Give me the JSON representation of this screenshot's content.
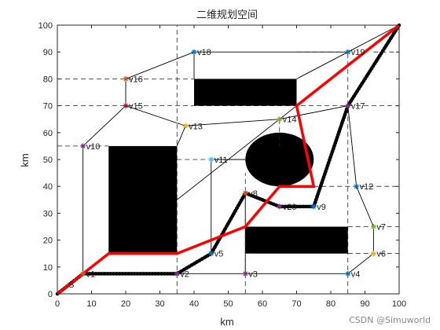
{
  "chart_data": {
    "type": "scatter",
    "title": "二维规划空间",
    "xlabel": "km",
    "ylabel": "km",
    "xlim": [
      0,
      100
    ],
    "ylim": [
      0,
      100
    ],
    "xticks": [
      0,
      10,
      20,
      30,
      40,
      50,
      60,
      70,
      80,
      90,
      100
    ],
    "yticks": [
      0,
      10,
      20,
      30,
      40,
      50,
      60,
      70,
      80,
      90,
      100
    ],
    "grid": false,
    "start_label": "S",
    "obstacles": [
      {
        "shape": "rect",
        "x": [
          15,
          35
        ],
        "y": [
          15,
          55
        ]
      },
      {
        "shape": "rect",
        "x": [
          40,
          70
        ],
        "y": [
          70,
          80
        ]
      },
      {
        "shape": "rect",
        "x": [
          55,
          85
        ],
        "y": [
          15,
          25
        ]
      },
      {
        "shape": "ellipse",
        "center": [
          65,
          50
        ],
        "radii": [
          10,
          10
        ]
      }
    ],
    "vertices": [
      {
        "name": "v1",
        "x": 7.5,
        "y": 7.5,
        "color": "#d95319"
      },
      {
        "name": "v2",
        "x": 35,
        "y": 7.5,
        "color": "#7e2f8e"
      },
      {
        "name": "v3",
        "x": 55,
        "y": 7.5,
        "color": "#7e2f8e"
      },
      {
        "name": "v4",
        "x": 85,
        "y": 7.5,
        "color": "#0072bd"
      },
      {
        "name": "v5",
        "x": 45,
        "y": 15,
        "color": "#0072bd"
      },
      {
        "name": "v6",
        "x": 92.5,
        "y": 15,
        "color": "#edb120"
      },
      {
        "name": "v7",
        "x": 92.5,
        "y": 25,
        "color": "#77ac30"
      },
      {
        "name": "v8",
        "x": 55,
        "y": 37.5,
        "color": "#d95319"
      },
      {
        "name": "v9",
        "x": 75,
        "y": 32.5,
        "color": "#0072bd"
      },
      {
        "name": "v10",
        "x": 7.5,
        "y": 55,
        "color": "#7e2f8e"
      },
      {
        "name": "v11",
        "x": 45,
        "y": 50,
        "color": "#4dbeee"
      },
      {
        "name": "v12",
        "x": 87.5,
        "y": 40,
        "color": "#0072bd"
      },
      {
        "name": "v13",
        "x": 37.5,
        "y": 62.5,
        "color": "#edb120"
      },
      {
        "name": "v14",
        "x": 65,
        "y": 65,
        "color": "#77ac30"
      },
      {
        "name": "v15",
        "x": 20,
        "y": 70,
        "color": "#a2142f"
      },
      {
        "name": "v16",
        "x": 20,
        "y": 80,
        "color": "#d95319"
      },
      {
        "name": "v17",
        "x": 85,
        "y": 70,
        "color": "#7e2f8e"
      },
      {
        "name": "v18",
        "x": 40,
        "y": 90,
        "color": "#0072bd"
      },
      {
        "name": "v19",
        "x": 85,
        "y": 90,
        "color": "#0072bd"
      },
      {
        "name": "v20",
        "x": 65,
        "y": 32.5,
        "color": "#7e2f8e"
      }
    ],
    "series": [
      {
        "name": "",
        "style": "thin-black",
        "segments": [
          [
            [
              0,
              0
            ],
            [
              100,
              100
            ]
          ],
          [
            [
              7.5,
              7.5
            ],
            [
              7.5,
              55
            ]
          ],
          [
            [
              7.5,
              55
            ],
            [
              20,
              70
            ]
          ],
          [
            [
              20,
              70
            ],
            [
              20,
              80
            ]
          ],
          [
            [
              20,
              80
            ],
            [
              40,
              90
            ]
          ],
          [
            [
              40,
              90
            ],
            [
              85,
              90
            ]
          ],
          [
            [
              85,
              90
            ],
            [
              100,
              100
            ]
          ],
          [
            [
              20,
              70
            ],
            [
              37.5,
              62.5
            ]
          ],
          [
            [
              37.5,
              62.5
            ],
            [
              65,
              65
            ]
          ],
          [
            [
              65,
              65
            ],
            [
              85,
              70
            ]
          ],
          [
            [
              85,
              70
            ],
            [
              100,
              100
            ]
          ],
          [
            [
              37.5,
              62.5
            ],
            [
              35,
              55
            ]
          ],
          [
            [
              45,
              15
            ],
            [
              45,
              50
            ]
          ],
          [
            [
              45,
              50
            ],
            [
              55,
              50
            ]
          ],
          [
            [
              55,
              37.5
            ],
            [
              55,
              7.5
            ]
          ],
          [
            [
              75,
              32.5
            ],
            [
              85,
              70
            ]
          ],
          [
            [
              85,
              70
            ],
            [
              87.5,
              40
            ]
          ],
          [
            [
              87.5,
              40
            ],
            [
              92.5,
              25
            ]
          ],
          [
            [
              92.5,
              25
            ],
            [
              92.5,
              15
            ]
          ],
          [
            [
              92.5,
              15
            ],
            [
              85,
              7.5
            ]
          ],
          [
            [
              7.5,
              7.5
            ],
            [
              85,
              7.5
            ]
          ],
          [
            [
              40,
              80
            ],
            [
              40,
              90
            ]
          ],
          [
            [
              70,
              80
            ],
            [
              85,
              90
            ]
          ]
        ]
      },
      {
        "name": "",
        "style": "dashed",
        "segments": [
          [
            [
              35,
              0
            ],
            [
              35,
              100
            ]
          ],
          [
            [
              55,
              0
            ],
            [
              55,
              45
            ]
          ],
          [
            [
              65,
              65
            ],
            [
              65,
              55
            ]
          ],
          [
            [
              85,
              0
            ],
            [
              85,
              90
            ]
          ],
          [
            [
              0,
              70
            ],
            [
              100,
              70
            ]
          ],
          [
            [
              0,
              80
            ],
            [
              40,
              80
            ]
          ],
          [
            [
              0,
              55
            ],
            [
              15,
              55
            ]
          ],
          [
            [
              35,
              50
            ],
            [
              45,
              50
            ]
          ],
          [
            [
              75,
              40
            ],
            [
              100,
              40
            ]
          ],
          [
            [
              85,
              25
            ],
            [
              100,
              25
            ]
          ],
          [
            [
              85,
              15
            ],
            [
              100,
              15
            ]
          ],
          [
            [
              70,
              90
            ],
            [
              85,
              90
            ]
          ],
          [
            [
              92.5,
              90
            ],
            [
              100,
              90
            ]
          ]
        ]
      },
      {
        "name": "",
        "style": "dotted-black",
        "points": [
          [
            0,
            0
          ],
          [
            7.5,
            7.5
          ],
          [
            35,
            7.5
          ],
          [
            45,
            15
          ],
          [
            55,
            37.5
          ],
          [
            65,
            32.5
          ],
          [
            75,
            32.5
          ],
          [
            85,
            70
          ],
          [
            100,
            100
          ]
        ]
      },
      {
        "name": "",
        "style": "red",
        "points": [
          [
            0,
            0
          ],
          [
            15,
            15
          ],
          [
            35,
            15
          ],
          [
            55,
            25
          ],
          [
            65,
            40
          ],
          [
            75,
            40
          ],
          [
            70,
            70
          ],
          [
            100,
            100
          ]
        ]
      }
    ]
  },
  "watermark": "CSDN @Simuworld"
}
